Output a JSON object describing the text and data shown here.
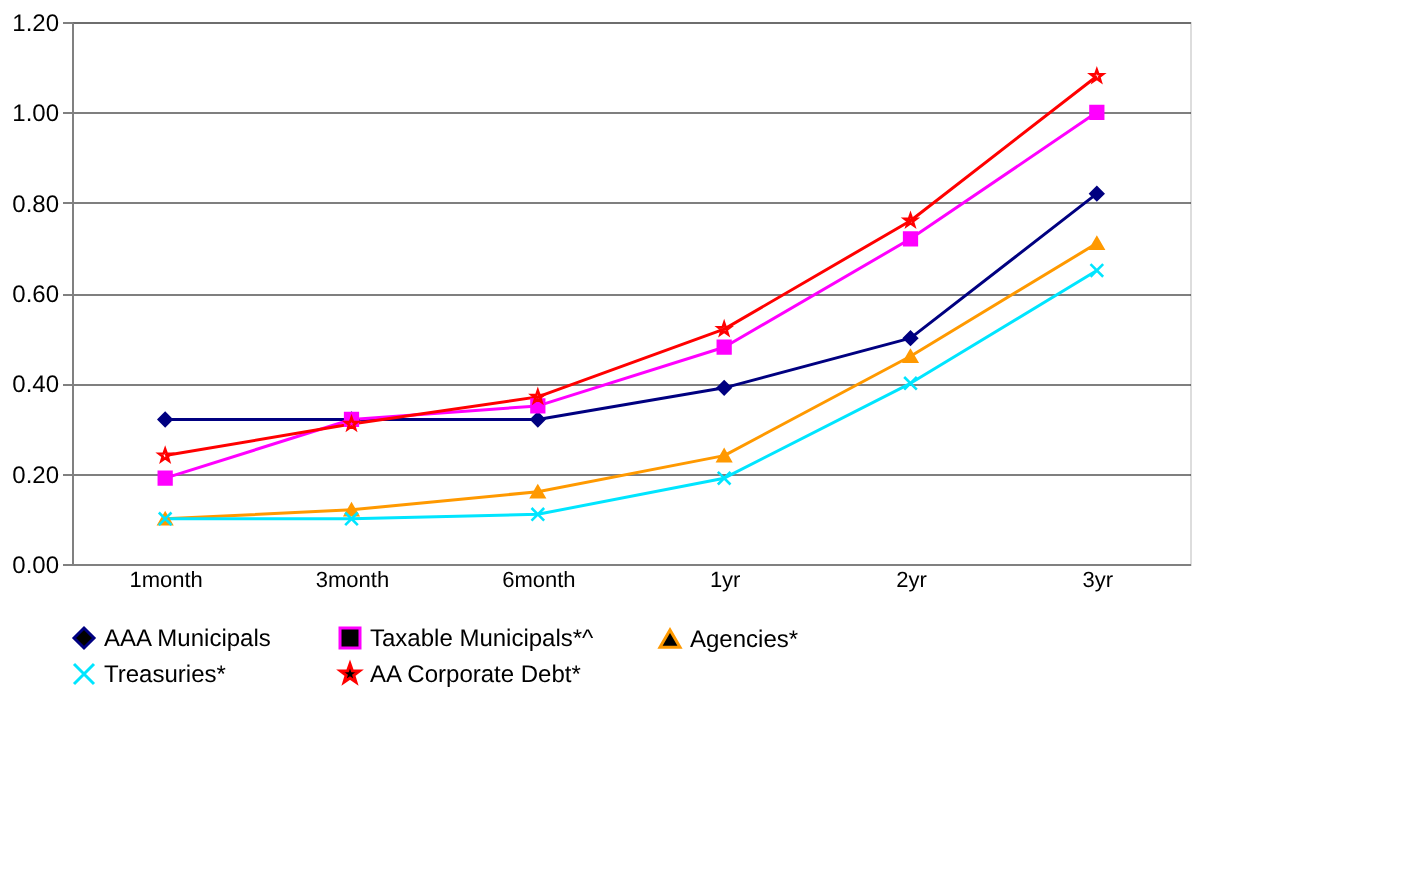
{
  "chart_data": {
    "type": "line",
    "categories": [
      "1month",
      "3month",
      "6month",
      "1yr",
      "2yr",
      "3yr"
    ],
    "series": [
      {
        "name": "AAA Municipals",
        "color": "#000080",
        "marker": "diamond",
        "values": [
          0.32,
          0.32,
          0.32,
          0.39,
          0.5,
          0.82
        ]
      },
      {
        "name": "Taxable Municipals*^",
        "color": "#ff00ff",
        "marker": "square",
        "values": [
          0.19,
          0.32,
          0.35,
          0.48,
          0.72,
          1.0
        ]
      },
      {
        "name": "Agencies*",
        "color": "#ff9900",
        "marker": "triangle",
        "values": [
          0.1,
          0.12,
          0.16,
          0.24,
          0.46,
          0.71
        ]
      },
      {
        "name": "Treasuries*",
        "color": "#00e5ff",
        "marker": "cross",
        "values": [
          0.1,
          0.1,
          0.11,
          0.19,
          0.4,
          0.65
        ]
      },
      {
        "name": "AA Corporate Debt*",
        "color": "#ff0000",
        "marker": "star",
        "values": [
          0.24,
          0.31,
          0.37,
          0.52,
          0.76,
          1.08
        ]
      }
    ],
    "ylim": [
      0,
      1.2
    ],
    "yticks": [
      {
        "value": 0,
        "label": "0.00"
      },
      {
        "value": 0.2,
        "label": "0.20"
      },
      {
        "value": 0.4,
        "label": "0.40"
      },
      {
        "value": 0.6,
        "label": "0.60"
      },
      {
        "value": 0.8,
        "label": "0.80"
      },
      {
        "value": 1.0,
        "label": "1.00"
      },
      {
        "value": 1.2,
        "label": "1.20"
      }
    ],
    "grid": "y",
    "legend": "bottom",
    "line_style": "solid"
  }
}
